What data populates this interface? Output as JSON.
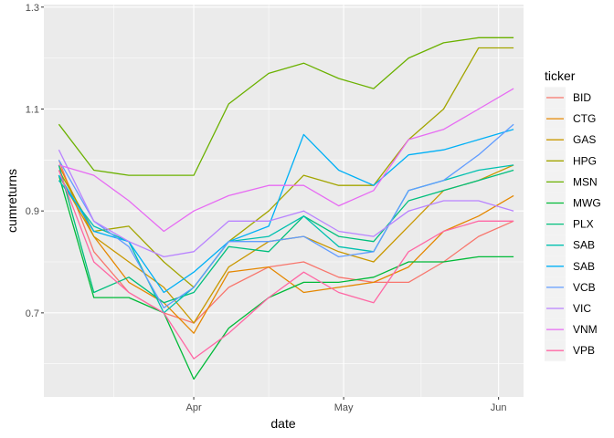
{
  "chart_data": {
    "type": "line",
    "xlabel": "date",
    "ylabel": "cumreturns",
    "x_ticks": [
      "Apr",
      "May",
      "Jun"
    ],
    "y_ticks": [
      "0.7",
      "0.9",
      "1.1",
      "1.3"
    ],
    "xlim": [
      "2021-03-02",
      "2021-06-06"
    ],
    "ylim": [
      0.535,
      1.305
    ],
    "grid": true,
    "legend_title": "ticker",
    "legend_position": "right",
    "series": [
      {
        "name": "BID",
        "color": "#F8766D",
        "points": [
          [
            "2021-03-05",
            1.0
          ],
          [
            "2021-03-12",
            0.82
          ],
          [
            "2021-03-19",
            0.74
          ],
          [
            "2021-03-26",
            0.7
          ],
          [
            "2021-04-01",
            0.68
          ],
          [
            "2021-04-08",
            0.75
          ],
          [
            "2021-04-16",
            0.79
          ],
          [
            "2021-04-23",
            0.8
          ],
          [
            "2021-04-30",
            0.77
          ],
          [
            "2021-05-07",
            0.76
          ],
          [
            "2021-05-14",
            0.76
          ],
          [
            "2021-05-21",
            0.8
          ],
          [
            "2021-05-28",
            0.85
          ],
          [
            "2021-06-04",
            0.88
          ]
        ]
      },
      {
        "name": "CTG",
        "color": "#E58700",
        "points": [
          [
            "2021-03-05",
            0.99
          ],
          [
            "2021-03-12",
            0.85
          ],
          [
            "2021-03-19",
            0.76
          ],
          [
            "2021-03-26",
            0.72
          ],
          [
            "2021-04-01",
            0.66
          ],
          [
            "2021-04-08",
            0.78
          ],
          [
            "2021-04-16",
            0.79
          ],
          [
            "2021-04-23",
            0.74
          ],
          [
            "2021-04-30",
            0.75
          ],
          [
            "2021-05-07",
            0.76
          ],
          [
            "2021-05-14",
            0.79
          ],
          [
            "2021-05-21",
            0.86
          ],
          [
            "2021-05-28",
            0.89
          ],
          [
            "2021-06-04",
            0.93
          ]
        ]
      },
      {
        "name": "GAS",
        "color": "#C99800",
        "points": [
          [
            "2021-03-05",
            0.97
          ],
          [
            "2021-03-12",
            0.85
          ],
          [
            "2021-03-19",
            0.8
          ],
          [
            "2021-03-26",
            0.75
          ],
          [
            "2021-04-01",
            0.68
          ],
          [
            "2021-04-08",
            0.79
          ],
          [
            "2021-04-16",
            0.84
          ],
          [
            "2021-04-23",
            0.85
          ],
          [
            "2021-04-30",
            0.82
          ],
          [
            "2021-05-07",
            0.8
          ],
          [
            "2021-05-14",
            0.87
          ],
          [
            "2021-05-21",
            0.94
          ],
          [
            "2021-05-28",
            0.96
          ],
          [
            "2021-06-04",
            0.99
          ]
        ]
      },
      {
        "name": "HPG",
        "color": "#A3A500",
        "points": [
          [
            "2021-03-05",
            0.98
          ],
          [
            "2021-03-12",
            0.86
          ],
          [
            "2021-03-19",
            0.87
          ],
          [
            "2021-03-26",
            0.8
          ],
          [
            "2021-04-01",
            0.75
          ],
          [
            "2021-04-08",
            0.84
          ],
          [
            "2021-04-16",
            0.9
          ],
          [
            "2021-04-23",
            0.97
          ],
          [
            "2021-04-30",
            0.95
          ],
          [
            "2021-05-07",
            0.95
          ],
          [
            "2021-05-14",
            1.04
          ],
          [
            "2021-05-21",
            1.1
          ],
          [
            "2021-05-28",
            1.22
          ],
          [
            "2021-06-04",
            1.22
          ]
        ]
      },
      {
        "name": "MSN",
        "color": "#6BB100",
        "points": [
          [
            "2021-03-05",
            1.07
          ],
          [
            "2021-03-12",
            0.98
          ],
          [
            "2021-03-19",
            0.97
          ],
          [
            "2021-03-26",
            0.97
          ],
          [
            "2021-04-01",
            0.97
          ],
          [
            "2021-04-08",
            1.11
          ],
          [
            "2021-04-16",
            1.17
          ],
          [
            "2021-04-23",
            1.19
          ],
          [
            "2021-04-30",
            1.16
          ],
          [
            "2021-05-07",
            1.14
          ],
          [
            "2021-05-14",
            1.2
          ],
          [
            "2021-05-21",
            1.23
          ],
          [
            "2021-05-28",
            1.24
          ],
          [
            "2021-06-04",
            1.24
          ]
        ]
      },
      {
        "name": "MWG",
        "color": "#00BA38",
        "points": [
          [
            "2021-03-05",
            0.97
          ],
          [
            "2021-03-12",
            0.73
          ],
          [
            "2021-03-19",
            0.73
          ],
          [
            "2021-03-26",
            0.7
          ],
          [
            "2021-04-01",
            0.57
          ],
          [
            "2021-04-08",
            0.67
          ],
          [
            "2021-04-16",
            0.73
          ],
          [
            "2021-04-23",
            0.76
          ],
          [
            "2021-04-30",
            0.76
          ],
          [
            "2021-05-07",
            0.77
          ],
          [
            "2021-05-14",
            0.8
          ],
          [
            "2021-05-21",
            0.8
          ],
          [
            "2021-05-28",
            0.81
          ],
          [
            "2021-06-04",
            0.81
          ]
        ]
      },
      {
        "name": "PLX",
        "color": "#00BF7D",
        "points": [
          [
            "2021-03-05",
            0.99
          ],
          [
            "2021-03-12",
            0.74
          ],
          [
            "2021-03-19",
            0.77
          ],
          [
            "2021-03-26",
            0.72
          ],
          [
            "2021-04-01",
            0.74
          ],
          [
            "2021-04-08",
            0.83
          ],
          [
            "2021-04-16",
            0.82
          ],
          [
            "2021-04-23",
            0.89
          ],
          [
            "2021-04-30",
            0.85
          ],
          [
            "2021-05-07",
            0.84
          ],
          [
            "2021-05-14",
            0.92
          ],
          [
            "2021-05-21",
            0.94
          ],
          [
            "2021-05-28",
            0.96
          ],
          [
            "2021-06-04",
            0.98
          ]
        ]
      },
      {
        "name": "SAB",
        "color": "#00C0AF",
        "points": [
          [
            "2021-03-05",
            0.96
          ],
          [
            "2021-03-12",
            0.87
          ],
          [
            "2021-03-19",
            0.84
          ],
          [
            "2021-03-26",
            0.7
          ],
          [
            "2021-04-01",
            0.75
          ],
          [
            "2021-04-08",
            0.84
          ],
          [
            "2021-04-16",
            0.85
          ],
          [
            "2021-04-23",
            0.89
          ],
          [
            "2021-04-30",
            0.83
          ],
          [
            "2021-05-07",
            0.82
          ],
          [
            "2021-05-14",
            0.94
          ],
          [
            "2021-05-21",
            0.96
          ],
          [
            "2021-05-28",
            0.98
          ],
          [
            "2021-06-04",
            0.99
          ]
        ]
      },
      {
        "name": "SAB",
        "color": "#00B0F6",
        "points": [
          [
            "2021-03-05",
            0.97
          ],
          [
            "2021-03-12",
            0.86
          ],
          [
            "2021-03-19",
            0.84
          ],
          [
            "2021-03-26",
            0.74
          ],
          [
            "2021-04-01",
            0.78
          ],
          [
            "2021-04-08",
            0.84
          ],
          [
            "2021-04-16",
            0.87
          ],
          [
            "2021-04-23",
            1.05
          ],
          [
            "2021-04-30",
            0.98
          ],
          [
            "2021-05-07",
            0.95
          ],
          [
            "2021-05-14",
            1.01
          ],
          [
            "2021-05-21",
            1.02
          ],
          [
            "2021-05-28",
            1.04
          ],
          [
            "2021-06-04",
            1.06
          ]
        ]
      },
      {
        "name": "VCB",
        "color": "#619CFF",
        "points": [
          [
            "2021-03-05",
            1.0
          ],
          [
            "2021-03-12",
            0.88
          ],
          [
            "2021-03-19",
            0.83
          ],
          [
            "2021-03-26",
            0.71
          ],
          [
            "2021-04-01",
            0.75
          ],
          [
            "2021-04-08",
            0.84
          ],
          [
            "2021-04-16",
            0.84
          ],
          [
            "2021-04-23",
            0.85
          ],
          [
            "2021-04-30",
            0.81
          ],
          [
            "2021-05-07",
            0.82
          ],
          [
            "2021-05-14",
            0.94
          ],
          [
            "2021-05-21",
            0.96
          ],
          [
            "2021-05-28",
            1.01
          ],
          [
            "2021-06-04",
            1.07
          ]
        ]
      },
      {
        "name": "VIC",
        "color": "#B983FF",
        "points": [
          [
            "2021-03-05",
            1.02
          ],
          [
            "2021-03-12",
            0.88
          ],
          [
            "2021-03-19",
            0.84
          ],
          [
            "2021-03-26",
            0.81
          ],
          [
            "2021-04-01",
            0.82
          ],
          [
            "2021-04-08",
            0.88
          ],
          [
            "2021-04-16",
            0.88
          ],
          [
            "2021-04-23",
            0.9
          ],
          [
            "2021-04-30",
            0.86
          ],
          [
            "2021-05-07",
            0.85
          ],
          [
            "2021-05-14",
            0.9
          ],
          [
            "2021-05-21",
            0.92
          ],
          [
            "2021-05-28",
            0.92
          ],
          [
            "2021-06-04",
            0.9
          ]
        ]
      },
      {
        "name": "VNM",
        "color": "#E76BF3",
        "points": [
          [
            "2021-03-05",
            0.99
          ],
          [
            "2021-03-12",
            0.97
          ],
          [
            "2021-03-19",
            0.92
          ],
          [
            "2021-03-26",
            0.86
          ],
          [
            "2021-04-01",
            0.9
          ],
          [
            "2021-04-08",
            0.93
          ],
          [
            "2021-04-16",
            0.95
          ],
          [
            "2021-04-23",
            0.95
          ],
          [
            "2021-04-30",
            0.91
          ],
          [
            "2021-05-07",
            0.94
          ],
          [
            "2021-05-14",
            1.04
          ],
          [
            "2021-05-21",
            1.06
          ],
          [
            "2021-05-28",
            1.1
          ],
          [
            "2021-06-04",
            1.14
          ]
        ]
      },
      {
        "name": "VPB",
        "color": "#FF67A4",
        "points": [
          [
            "2021-03-05",
            0.98
          ],
          [
            "2021-03-12",
            0.8
          ],
          [
            "2021-03-19",
            0.74
          ],
          [
            "2021-03-26",
            0.7
          ],
          [
            "2021-04-01",
            0.61
          ],
          [
            "2021-04-08",
            0.66
          ],
          [
            "2021-04-16",
            0.73
          ],
          [
            "2021-04-23",
            0.78
          ],
          [
            "2021-04-30",
            0.74
          ],
          [
            "2021-05-07",
            0.72
          ],
          [
            "2021-05-14",
            0.82
          ],
          [
            "2021-05-21",
            0.86
          ],
          [
            "2021-05-28",
            0.88
          ],
          [
            "2021-06-04",
            0.88
          ]
        ]
      }
    ]
  }
}
